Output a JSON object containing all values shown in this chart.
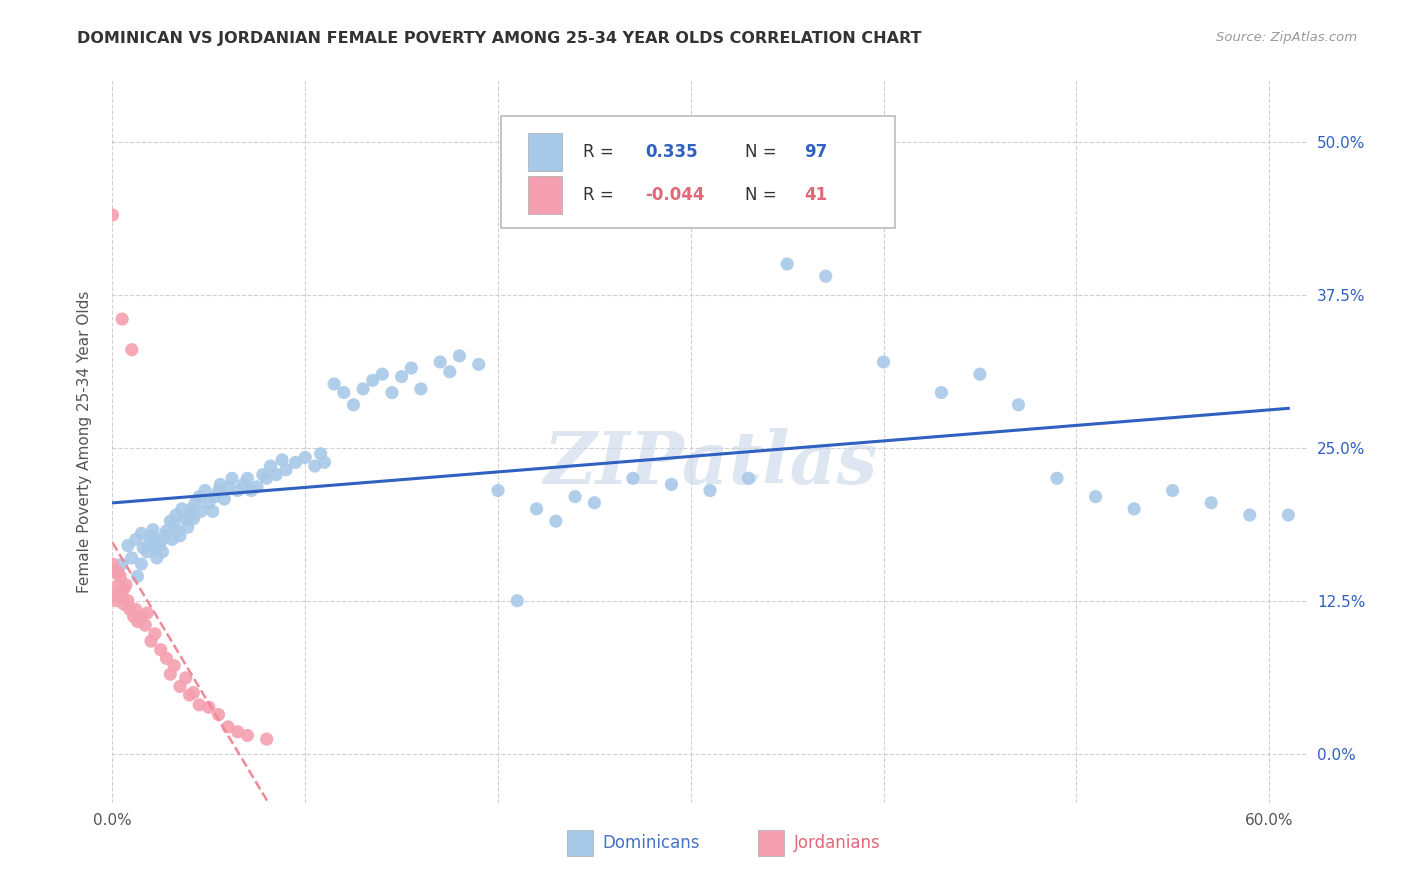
{
  "title": "DOMINICAN VS JORDANIAN FEMALE POVERTY AMONG 25-34 YEAR OLDS CORRELATION CHART",
  "source": "Source: ZipAtlas.com",
  "ylabel": "Female Poverty Among 25-34 Year Olds",
  "xlim": [
    0.0,
    0.62
  ],
  "ylim": [
    -0.04,
    0.55
  ],
  "yticks": [
    0.0,
    0.125,
    0.25,
    0.375,
    0.5
  ],
  "ytick_labels": [
    "0.0%",
    "12.5%",
    "25.0%",
    "37.5%",
    "50.0%"
  ],
  "xticks": [
    0.0,
    0.1,
    0.2,
    0.3,
    0.4,
    0.5,
    0.6
  ],
  "xtick_labels": [
    "0.0%",
    "",
    "",
    "",
    "",
    "",
    "60.0%"
  ],
  "dominican_color": "#a8c8e8",
  "jordanian_color": "#f4a0b0",
  "dominican_line_color": "#3060c0",
  "jordanian_line_color": "#f08898",
  "R_dominican": 0.335,
  "N_dominican": 97,
  "R_jordanian": -0.044,
  "N_jordanian": 41,
  "background_color": "#ffffff",
  "grid_color": "#cccccc",
  "watermark": "ZIPatlas",
  "dominican_x": [
    0.005,
    0.008,
    0.01,
    0.012,
    0.013,
    0.015,
    0.015,
    0.016,
    0.018,
    0.019,
    0.02,
    0.021,
    0.022,
    0.022,
    0.023,
    0.024,
    0.025,
    0.026,
    0.027,
    0.028,
    0.03,
    0.031,
    0.032,
    0.033,
    0.034,
    0.035,
    0.036,
    0.038,
    0.039,
    0.04,
    0.041,
    0.042,
    0.043,
    0.045,
    0.046,
    0.048,
    0.05,
    0.052,
    0.053,
    0.055,
    0.056,
    0.058,
    0.06,
    0.062,
    0.065,
    0.068,
    0.07,
    0.072,
    0.075,
    0.078,
    0.08,
    0.082,
    0.085,
    0.088,
    0.09,
    0.095,
    0.1,
    0.105,
    0.108,
    0.11,
    0.115,
    0.12,
    0.125,
    0.13,
    0.135,
    0.14,
    0.145,
    0.15,
    0.155,
    0.16,
    0.17,
    0.175,
    0.18,
    0.19,
    0.2,
    0.21,
    0.22,
    0.23,
    0.24,
    0.25,
    0.27,
    0.29,
    0.31,
    0.33,
    0.35,
    0.37,
    0.4,
    0.43,
    0.45,
    0.47,
    0.49,
    0.51,
    0.53,
    0.55,
    0.57,
    0.59,
    0.61
  ],
  "dominican_y": [
    0.155,
    0.17,
    0.16,
    0.175,
    0.145,
    0.18,
    0.155,
    0.168,
    0.165,
    0.172,
    0.178,
    0.183,
    0.168,
    0.175,
    0.16,
    0.17,
    0.173,
    0.165,
    0.178,
    0.182,
    0.19,
    0.175,
    0.188,
    0.195,
    0.182,
    0.178,
    0.2,
    0.192,
    0.185,
    0.195,
    0.2,
    0.192,
    0.205,
    0.21,
    0.198,
    0.215,
    0.205,
    0.198,
    0.21,
    0.215,
    0.22,
    0.208,
    0.218,
    0.225,
    0.215,
    0.22,
    0.225,
    0.215,
    0.218,
    0.228,
    0.225,
    0.235,
    0.228,
    0.24,
    0.232,
    0.238,
    0.242,
    0.235,
    0.245,
    0.238,
    0.302,
    0.295,
    0.285,
    0.298,
    0.305,
    0.31,
    0.295,
    0.308,
    0.315,
    0.298,
    0.32,
    0.312,
    0.325,
    0.318,
    0.215,
    0.125,
    0.2,
    0.19,
    0.21,
    0.205,
    0.225,
    0.22,
    0.215,
    0.225,
    0.4,
    0.39,
    0.32,
    0.295,
    0.31,
    0.285,
    0.225,
    0.21,
    0.2,
    0.215,
    0.205,
    0.195,
    0.195
  ],
  "jordanian_x": [
    0.0,
    0.0,
    0.001,
    0.001,
    0.002,
    0.002,
    0.003,
    0.003,
    0.004,
    0.004,
    0.005,
    0.005,
    0.006,
    0.006,
    0.007,
    0.008,
    0.009,
    0.01,
    0.011,
    0.012,
    0.013,
    0.015,
    0.017,
    0.018,
    0.02,
    0.022,
    0.025,
    0.028,
    0.03,
    0.032,
    0.035,
    0.038,
    0.04,
    0.042,
    0.045,
    0.05,
    0.055,
    0.06,
    0.065,
    0.07,
    0.08
  ],
  "jordanian_y": [
    0.44,
    0.155,
    0.15,
    0.13,
    0.148,
    0.125,
    0.148,
    0.138,
    0.145,
    0.128,
    0.355,
    0.128,
    0.135,
    0.122,
    0.138,
    0.125,
    0.118,
    0.33,
    0.112,
    0.118,
    0.108,
    0.112,
    0.105,
    0.115,
    0.092,
    0.098,
    0.085,
    0.078,
    0.065,
    0.072,
    0.055,
    0.062,
    0.048,
    0.05,
    0.04,
    0.038,
    0.032,
    0.022,
    0.018,
    0.015,
    0.012
  ]
}
